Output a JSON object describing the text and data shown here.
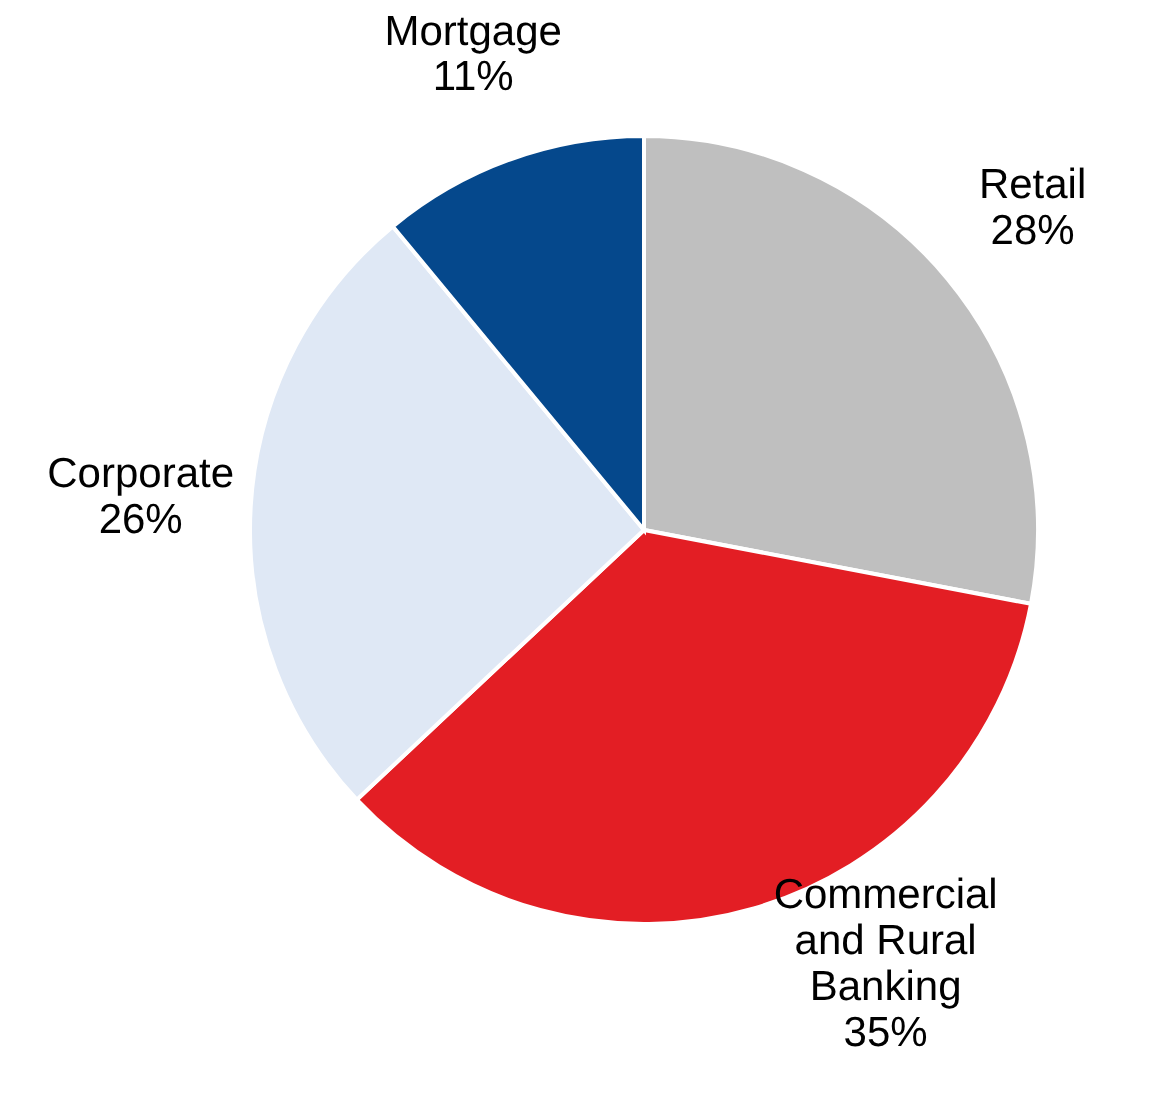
{
  "chart_data": {
    "type": "pie",
    "categories": [
      "Retail",
      "Commercial and Rural Banking",
      "Corporate",
      "Mortgage"
    ],
    "values": [
      28,
      35,
      26,
      11
    ],
    "value_labels": [
      "28%",
      "35%",
      "26%",
      "11%"
    ],
    "colors": [
      "#bfbfbf",
      "#e31e24",
      "#dfe8f5",
      "#05488c"
    ]
  }
}
